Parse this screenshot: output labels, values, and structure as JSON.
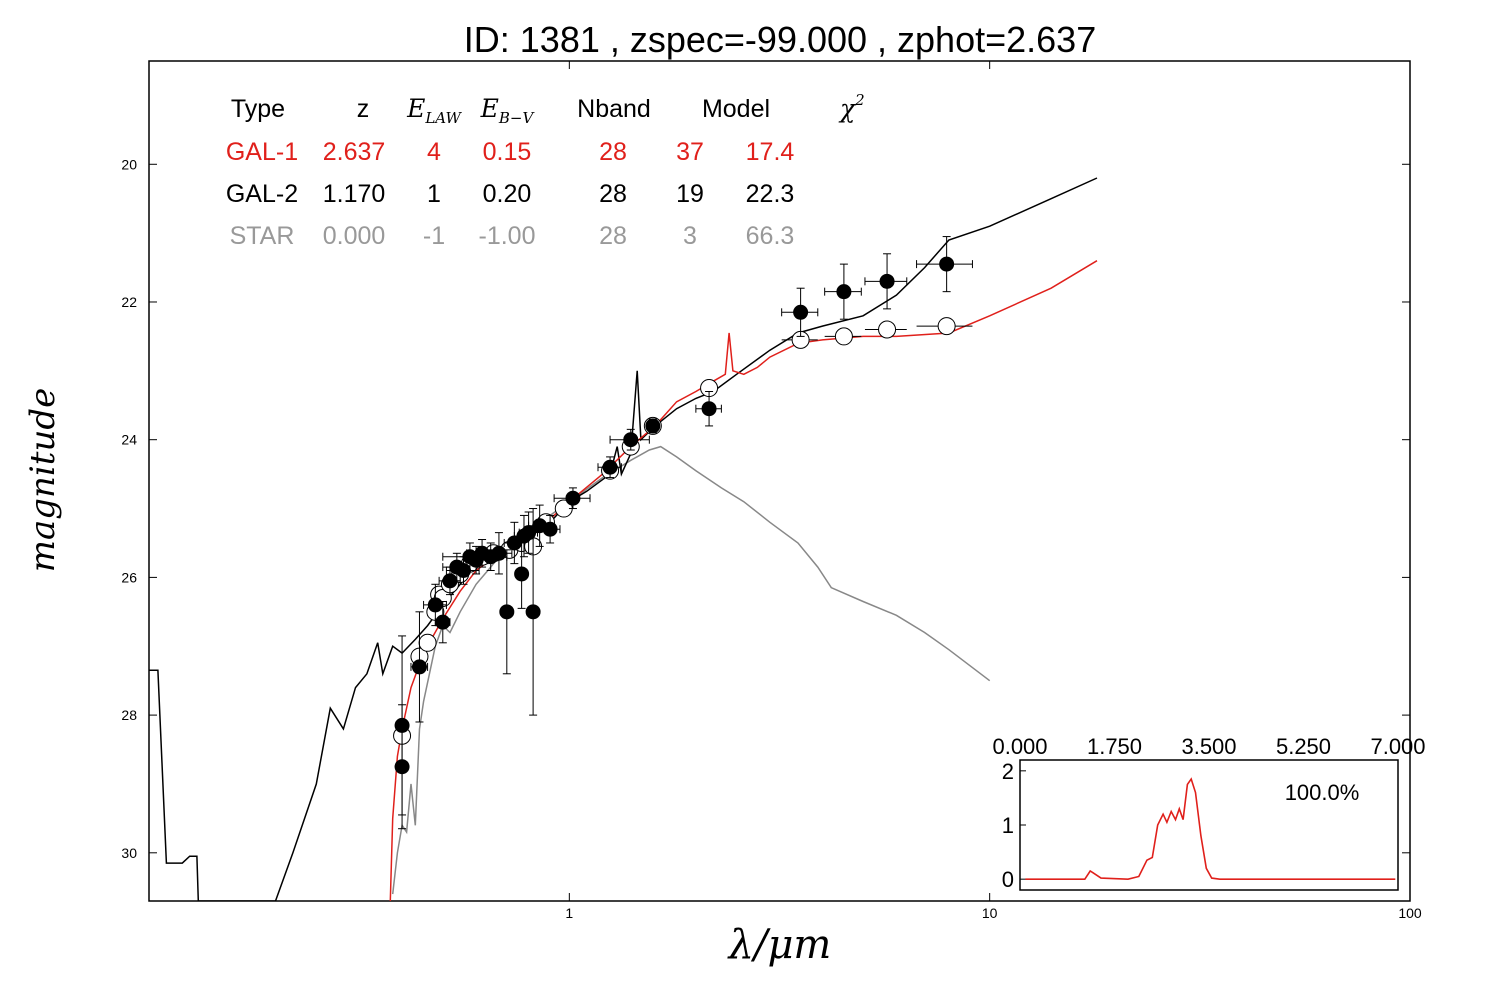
{
  "chart_data": [
    {
      "type": "scatter",
      "title": "ID:  1381  , zspec=-99.000 , zphot=2.637",
      "xlabel": "λ/μm",
      "ylabel": "magnitude",
      "xscale": "log",
      "xlim": [
        0.1,
        100
      ],
      "ylim": [
        30.7,
        18.5
      ],
      "x_ticks": [
        1,
        10,
        100
      ],
      "x_tick_labels": [
        "1",
        "10",
        "100"
      ],
      "y_ticks": [
        20,
        22,
        24,
        26,
        28,
        30
      ],
      "y_tick_labels": [
        "20",
        "22",
        "24",
        "26",
        "28",
        "30"
      ],
      "grid": false,
      "table": {
        "headers": [
          {
            "text": "Type",
            "math": false
          },
          {
            "text": "z",
            "math": false
          },
          {
            "text": "E",
            "sub": "LAW",
            "math": true
          },
          {
            "text": "E",
            "sub": "B−V",
            "math": true
          },
          {
            "text": "Nband",
            "math": false
          },
          {
            "text": "Model",
            "math": false
          },
          {
            "text": "χ",
            "sup": "2",
            "math": true
          }
        ],
        "rows": [
          {
            "color": "#e0201b",
            "cells": [
              "GAL-1",
              "2.637",
              "4",
              "0.15",
              "28",
              "37",
              "17.4"
            ]
          },
          {
            "color": "#000000",
            "cells": [
              "GAL-2",
              "1.170",
              "1",
              "0.20",
              "28",
              "19",
              "22.3"
            ]
          },
          {
            "color": "#999999",
            "cells": [
              "STAR",
              "0.000",
              "-1",
              "-1.00",
              "28",
              "3",
              "66.3"
            ]
          }
        ]
      },
      "series": [
        {
          "name": "observed",
          "style": "filled-points",
          "color": "#000000",
          "points": [
            {
              "x": 0.4,
              "y": 28.15,
              "xerr": 0.01,
              "yerr": 1.3
            },
            {
              "x": 0.4,
              "y": 28.75,
              "xerr": 0.01,
              "yerr": 0.9
            },
            {
              "x": 0.44,
              "y": 27.3,
              "xerr": 0.02,
              "yerr": 0.8
            },
            {
              "x": 0.48,
              "y": 26.4,
              "xerr": 0.03,
              "yerr": 0.3
            },
            {
              "x": 0.5,
              "y": 26.65,
              "xerr": 0.02,
              "yerr": 0.3
            },
            {
              "x": 0.52,
              "y": 26.05,
              "xerr": 0.03,
              "yerr": 0.2
            },
            {
              "x": 0.54,
              "y": 25.85,
              "xerr": 0.04,
              "yerr": 0.2
            },
            {
              "x": 0.56,
              "y": 25.9,
              "xerr": 0.05,
              "yerr": 0.2
            },
            {
              "x": 0.58,
              "y": 25.7,
              "xerr": 0.08,
              "yerr": 0.2
            },
            {
              "x": 0.6,
              "y": 25.75,
              "xerr": 0.04,
              "yerr": 0.2
            },
            {
              "x": 0.62,
              "y": 25.65,
              "xerr": 0.05,
              "yerr": 0.2
            },
            {
              "x": 0.65,
              "y": 25.7,
              "xerr": 0.06,
              "yerr": 0.2
            },
            {
              "x": 0.68,
              "y": 25.65,
              "xerr": 0.05,
              "yerr": 0.3
            },
            {
              "x": 0.71,
              "y": 26.5,
              "xerr": 0.01,
              "yerr": 0.9
            },
            {
              "x": 0.74,
              "y": 25.5,
              "xerr": 0.04,
              "yerr": 0.3
            },
            {
              "x": 0.77,
              "y": 25.95,
              "xerr": 0.02,
              "yerr": 0.5
            },
            {
              "x": 0.78,
              "y": 25.4,
              "xerr": 0.04,
              "yerr": 0.3
            },
            {
              "x": 0.8,
              "y": 25.35,
              "xerr": 0.04,
              "yerr": 0.3
            },
            {
              "x": 0.82,
              "y": 26.5,
              "xerr": 0.01,
              "yerr": 1.5
            },
            {
              "x": 0.85,
              "y": 25.25,
              "xerr": 0.05,
              "yerr": 0.3
            },
            {
              "x": 0.9,
              "y": 25.3,
              "xerr": 0.05,
              "yerr": 0.2
            },
            {
              "x": 1.02,
              "y": 24.85,
              "xerr": 0.1,
              "yerr": 0.15
            },
            {
              "x": 1.25,
              "y": 24.4,
              "xerr": 0.08,
              "yerr": 0.15
            },
            {
              "x": 1.4,
              "y": 24.0,
              "xerr": 0.15,
              "yerr": 0.15
            },
            {
              "x": 1.58,
              "y": 23.8,
              "xerr": 0.05,
              "yerr": 0.1
            },
            {
              "x": 2.15,
              "y": 23.55,
              "xerr": 0.15,
              "yerr": 0.25
            },
            {
              "x": 3.55,
              "y": 22.15,
              "xerr": 0.35,
              "yerr": 0.35
            },
            {
              "x": 4.5,
              "y": 21.85,
              "xerr": 0.45,
              "yerr": 0.4
            },
            {
              "x": 5.7,
              "y": 21.7,
              "xerr": 0.65,
              "yerr": 0.4
            },
            {
              "x": 7.9,
              "y": 21.45,
              "xerr": 1.2,
              "yerr": 0.4
            }
          ]
        },
        {
          "name": "model",
          "style": "open-points",
          "color": "#000000",
          "points": [
            {
              "x": 0.4,
              "y": 28.3,
              "xerr": 0
            },
            {
              "x": 0.44,
              "y": 27.15,
              "xerr": 0
            },
            {
              "x": 0.46,
              "y": 26.95,
              "xerr": 0
            },
            {
              "x": 0.48,
              "y": 26.5,
              "xerr": 0
            },
            {
              "x": 0.49,
              "y": 26.25,
              "xerr": 0
            },
            {
              "x": 0.5,
              "y": 26.3,
              "xerr": 0
            },
            {
              "x": 0.52,
              "y": 26.1,
              "xerr": 0
            },
            {
              "x": 0.55,
              "y": 25.95,
              "xerr": 0
            },
            {
              "x": 0.58,
              "y": 25.8,
              "xerr": 0
            },
            {
              "x": 0.62,
              "y": 25.7,
              "xerr": 0
            },
            {
              "x": 0.66,
              "y": 25.65,
              "xerr": 0
            },
            {
              "x": 0.72,
              "y": 25.6,
              "xerr": 0
            },
            {
              "x": 0.77,
              "y": 25.5,
              "xerr": 0
            },
            {
              "x": 0.82,
              "y": 25.55,
              "xerr": 0
            },
            {
              "x": 0.88,
              "y": 25.2,
              "xerr": 0
            },
            {
              "x": 0.97,
              "y": 25.0,
              "xerr": 0
            },
            {
              "x": 1.25,
              "y": 24.45,
              "xerr": 0
            },
            {
              "x": 1.4,
              "y": 24.1,
              "xerr": 0
            },
            {
              "x": 1.58,
              "y": 23.8,
              "xerr": 0
            },
            {
              "x": 2.15,
              "y": 23.25,
              "xerr": 0
            },
            {
              "x": 3.55,
              "y": 22.55,
              "xerr": 0.35
            },
            {
              "x": 4.5,
              "y": 22.5,
              "xerr": 0.45
            },
            {
              "x": 5.7,
              "y": 22.4,
              "xerr": 0.65
            },
            {
              "x": 7.9,
              "y": 22.35,
              "xerr": 1.2
            }
          ]
        },
        {
          "name": "GAL-1",
          "style": "line",
          "color": "#e0201b",
          "points": [
            [
              0.375,
              30.7
            ],
            [
              0.38,
              29.5
            ],
            [
              0.39,
              28.6
            ],
            [
              0.4,
              28.2
            ],
            [
              0.42,
              27.6
            ],
            [
              0.45,
              27.1
            ],
            [
              0.5,
              26.6
            ],
            [
              0.55,
              26.2
            ],
            [
              0.6,
              25.9
            ],
            [
              0.7,
              25.6
            ],
            [
              0.8,
              25.35
            ],
            [
              0.9,
              25.15
            ],
            [
              1.0,
              24.9
            ],
            [
              1.2,
              24.5
            ],
            [
              1.4,
              24.1
            ],
            [
              1.6,
              23.8
            ],
            [
              1.8,
              23.45
            ],
            [
              2.0,
              23.3
            ],
            [
              2.2,
              23.15
            ],
            [
              2.35,
              23.05
            ],
            [
              2.4,
              22.45
            ],
            [
              2.45,
              23.0
            ],
            [
              2.6,
              23.05
            ],
            [
              2.8,
              22.95
            ],
            [
              3.0,
              22.8
            ],
            [
              3.5,
              22.6
            ],
            [
              4.0,
              22.55
            ],
            [
              5.0,
              22.5
            ],
            [
              6.0,
              22.5
            ],
            [
              8.0,
              22.45
            ],
            [
              10.0,
              22.2
            ],
            [
              14.0,
              21.8
            ],
            [
              18.0,
              21.4
            ]
          ]
        },
        {
          "name": "GAL-2",
          "style": "line",
          "color": "#000000",
          "points": [
            [
              0.1,
              27.35
            ],
            [
              0.105,
              27.35
            ],
            [
              0.11,
              30.15
            ],
            [
              0.12,
              30.15
            ],
            [
              0.125,
              30.05
            ],
            [
              0.13,
              30.05
            ],
            [
              0.131,
              30.7
            ],
            [
              0.2,
              30.7
            ],
            [
              0.22,
              30.0
            ],
            [
              0.25,
              29.0
            ],
            [
              0.27,
              27.9
            ],
            [
              0.29,
              28.2
            ],
            [
              0.31,
              27.6
            ],
            [
              0.33,
              27.4
            ],
            [
              0.35,
              26.95
            ],
            [
              0.36,
              27.4
            ],
            [
              0.38,
              27.0
            ],
            [
              0.4,
              27.1
            ],
            [
              0.43,
              26.9
            ],
            [
              0.46,
              26.7
            ],
            [
              0.5,
              26.4
            ],
            [
              0.55,
              26.1
            ],
            [
              0.6,
              25.8
            ],
            [
              0.7,
              25.55
            ],
            [
              0.8,
              25.35
            ],
            [
              0.9,
              25.2
            ],
            [
              1.0,
              24.9
            ],
            [
              1.1,
              24.75
            ],
            [
              1.25,
              24.5
            ],
            [
              1.3,
              24.1
            ],
            [
              1.33,
              24.5
            ],
            [
              1.4,
              24.2
            ],
            [
              1.45,
              23.0
            ],
            [
              1.48,
              24.0
            ],
            [
              1.6,
              23.8
            ],
            [
              1.8,
              23.55
            ],
            [
              2.0,
              23.4
            ],
            [
              2.2,
              23.3
            ],
            [
              2.5,
              23.05
            ],
            [
              3.0,
              22.7
            ],
            [
              3.5,
              22.45
            ],
            [
              4.0,
              22.35
            ],
            [
              5.0,
              22.2
            ],
            [
              6.0,
              21.9
            ],
            [
              7.0,
              21.5
            ],
            [
              8.0,
              21.1
            ],
            [
              10.0,
              20.9
            ],
            [
              14.0,
              20.5
            ],
            [
              18.0,
              20.2
            ]
          ]
        },
        {
          "name": "STAR",
          "style": "line",
          "color": "#888888",
          "points": [
            [
              0.38,
              30.6
            ],
            [
              0.39,
              30.0
            ],
            [
              0.4,
              29.6
            ],
            [
              0.41,
              29.7
            ],
            [
              0.42,
              29.0
            ],
            [
              0.43,
              29.6
            ],
            [
              0.44,
              28.2
            ],
            [
              0.45,
              27.8
            ],
            [
              0.48,
              27.0
            ],
            [
              0.5,
              26.7
            ],
            [
              0.52,
              26.8
            ],
            [
              0.55,
              26.5
            ],
            [
              0.6,
              26.1
            ],
            [
              0.65,
              25.85
            ],
            [
              0.7,
              25.6
            ],
            [
              0.8,
              25.35
            ],
            [
              0.9,
              25.1
            ],
            [
              1.0,
              24.9
            ],
            [
              1.2,
              24.55
            ],
            [
              1.4,
              24.3
            ],
            [
              1.55,
              24.15
            ],
            [
              1.65,
              24.1
            ],
            [
              1.8,
              24.25
            ],
            [
              2.0,
              24.45
            ],
            [
              2.3,
              24.7
            ],
            [
              2.6,
              24.9
            ],
            [
              3.0,
              25.2
            ],
            [
              3.5,
              25.5
            ],
            [
              3.9,
              25.85
            ],
            [
              4.2,
              26.15
            ],
            [
              5.0,
              26.35
            ],
            [
              6.0,
              26.55
            ],
            [
              7.0,
              26.8
            ],
            [
              8.0,
              27.05
            ],
            [
              10.0,
              27.5
            ]
          ]
        }
      ]
    },
    {
      "type": "line",
      "name": "inset",
      "xlim": [
        0,
        7
      ],
      "ylim": [
        -0.2,
        2.2
      ],
      "x_tick_labels": [
        "0.000",
        "1.750",
        "3.500",
        "5.250",
        "7.000"
      ],
      "y_tick_labels": [
        "0",
        "1",
        "2"
      ],
      "annotation": "100.0%",
      "color": "#e0201b",
      "points": [
        [
          0.1,
          0.0
        ],
        [
          1.2,
          0.0
        ],
        [
          1.3,
          0.15
        ],
        [
          1.35,
          0.12
        ],
        [
          1.5,
          0.02
        ],
        [
          2.0,
          0.0
        ],
        [
          2.2,
          0.05
        ],
        [
          2.35,
          0.35
        ],
        [
          2.45,
          0.4
        ],
        [
          2.55,
          1.0
        ],
        [
          2.65,
          1.2
        ],
        [
          2.72,
          1.05
        ],
        [
          2.8,
          1.25
        ],
        [
          2.88,
          1.1
        ],
        [
          2.95,
          1.3
        ],
        [
          3.02,
          1.1
        ],
        [
          3.1,
          1.75
        ],
        [
          3.17,
          1.85
        ],
        [
          3.25,
          1.6
        ],
        [
          3.35,
          0.8
        ],
        [
          3.45,
          0.2
        ],
        [
          3.55,
          0.02
        ],
        [
          3.7,
          0.0
        ],
        [
          6.95,
          0.0
        ]
      ]
    }
  ]
}
